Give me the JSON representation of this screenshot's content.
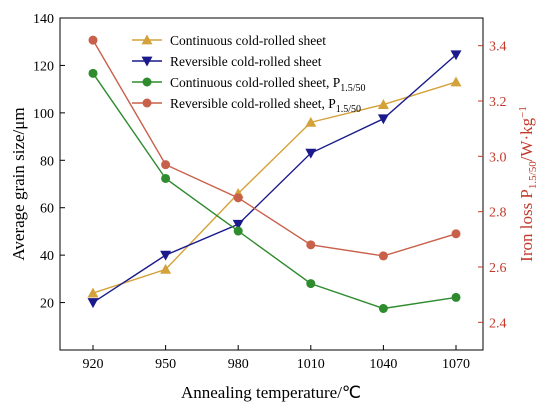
{
  "chart_data": {
    "type": "line",
    "x": [
      920,
      950,
      980,
      1010,
      1040,
      1070
    ],
    "xlabel": "Annealing temperature/℃",
    "ylabel_left": "Average grain size/μm",
    "ylabel_right_parts": [
      "Iron loss P",
      "1.5/50",
      "/W·kg",
      "−1"
    ],
    "left_ylim": [
      0,
      140
    ],
    "left_yticks": [
      20,
      40,
      60,
      80,
      100,
      120,
      140
    ],
    "right_ylim": [
      2.3,
      3.5
    ],
    "right_yticks": [
      2.4,
      2.6,
      2.8,
      3.0,
      3.2,
      3.4
    ],
    "grid": false,
    "legend_position": "top-center",
    "series": [
      {
        "name_main": "Continuous cold-rolled sheet",
        "name_sub": "",
        "axis": "left",
        "color": "#d4a23a",
        "marker": "triangle-up",
        "values": [
          24,
          34,
          66,
          96,
          103.5,
          113
        ]
      },
      {
        "name_main": "Reversible cold-rolled sheet",
        "name_sub": "",
        "axis": "left",
        "color": "#1a1a8c",
        "marker": "triangle-down",
        "values": [
          20,
          40,
          53,
          83,
          97.5,
          124.5
        ]
      },
      {
        "name_main": "Continuous cold-rolled sheet, P",
        "name_sub": "1.5/50",
        "axis": "right",
        "color": "#2e8b2e",
        "marker": "circle",
        "values": [
          3.3,
          2.92,
          2.73,
          2.54,
          2.45,
          2.49
        ]
      },
      {
        "name_main": "Reversible cold-rolled sheet, P",
        "name_sub": "1.5/50",
        "axis": "right",
        "color": "#c8604a",
        "marker": "circle",
        "values": [
          3.42,
          2.97,
          2.85,
          2.68,
          2.64,
          2.72
        ]
      }
    ],
    "colors": {
      "left_axis": "#000000",
      "right_axis": "#c0392b"
    }
  }
}
